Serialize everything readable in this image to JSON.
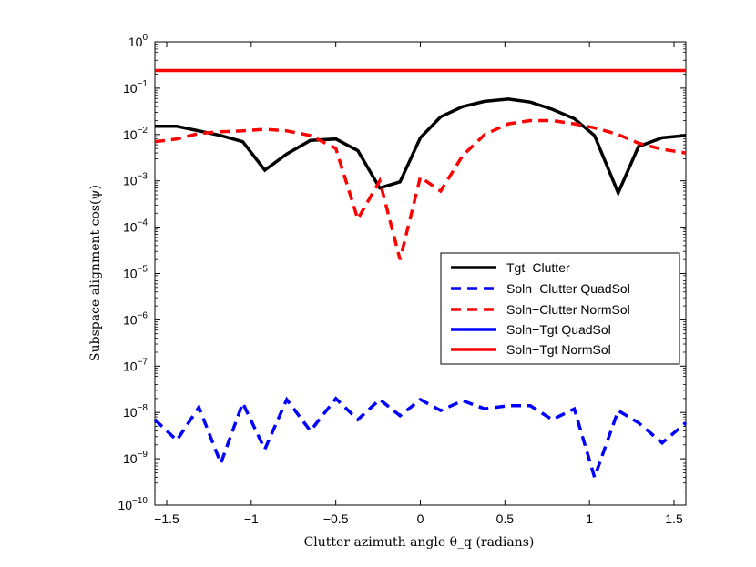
{
  "chart_data": {
    "type": "line",
    "xlabel": "Clutter azimuth angle θ_q (radians)",
    "ylabel": "Subspace alignment cos(ψ)",
    "xlim": [
      -1.57,
      1.57
    ],
    "ylim_log10": [
      -10,
      0
    ],
    "yscale": "log",
    "grid": false,
    "legend_position": "lower-right",
    "x_ticks": [
      -1.5,
      -1,
      -0.5,
      0,
      0.5,
      1,
      1.5
    ],
    "x_tick_labels": [
      "−1.5",
      "−1",
      "−0.5",
      "0",
      "0.5",
      "1",
      "1.5"
    ],
    "y_ticks_exp": [
      0,
      -1,
      -2,
      -3,
      -4,
      -5,
      -6,
      -7,
      -8,
      -9,
      -10
    ],
    "y_tick_labels": [
      {
        "base": "10",
        "exp": "0"
      },
      {
        "base": "10",
        "exp": "−1"
      },
      {
        "base": "10",
        "exp": "−2"
      },
      {
        "base": "10",
        "exp": "−3"
      },
      {
        "base": "10",
        "exp": "−4"
      },
      {
        "base": "10",
        "exp": "−5"
      },
      {
        "base": "10",
        "exp": "−6"
      },
      {
        "base": "10",
        "exp": "−7"
      },
      {
        "base": "10",
        "exp": "−8"
      },
      {
        "base": "10",
        "exp": "−9"
      },
      {
        "base": "10",
        "exp": "−10"
      }
    ],
    "series": [
      {
        "name": "Tgt−Clutter",
        "color": "#000000",
        "dash": "solid",
        "x": [
          -1.57,
          -1.44,
          -1.31,
          -1.18,
          -1.05,
          -0.92,
          -0.79,
          -0.65,
          -0.5,
          -0.37,
          -0.24,
          -0.12,
          0.0,
          0.12,
          0.25,
          0.38,
          0.52,
          0.65,
          0.78,
          0.91,
          1.03,
          1.17,
          1.29,
          1.43,
          1.57
        ],
        "y": [
          0.015,
          0.015,
          0.012,
          0.0095,
          0.007,
          0.0017,
          0.0038,
          0.0075,
          0.008,
          0.0045,
          0.0007,
          0.00095,
          0.0085,
          0.024,
          0.04,
          0.052,
          0.058,
          0.05,
          0.035,
          0.022,
          0.0095,
          0.00055,
          0.0055,
          0.0085,
          0.0095
        ]
      },
      {
        "name": "Soln−Clutter QuadSol",
        "color": "#0000ff",
        "dash": "dashed",
        "x": [
          -1.57,
          -1.44,
          -1.31,
          -1.18,
          -1.05,
          -0.92,
          -0.79,
          -0.65,
          -0.5,
          -0.37,
          -0.24,
          -0.12,
          0.0,
          0.12,
          0.25,
          0.38,
          0.52,
          0.65,
          0.78,
          0.91,
          1.03,
          1.17,
          1.29,
          1.43,
          1.57
        ],
        "y": [
          7e-09,
          2.5e-09,
          1.3e-08,
          8e-10,
          1.6e-08,
          1.6e-09,
          1.9e-08,
          4e-09,
          2e-08,
          7e-09,
          1.9e-08,
          8.5e-09,
          1.9e-08,
          1.1e-08,
          1.8e-08,
          1.2e-08,
          1.4e-08,
          1.4e-08,
          7e-09,
          1.2e-08,
          4e-10,
          1.1e-08,
          6e-09,
          2.2e-09,
          6e-09
        ]
      },
      {
        "name": "Soln−Clutter NormSol",
        "color": "#ff0000",
        "dash": "dashed",
        "x": [
          -1.57,
          -1.44,
          -1.31,
          -1.18,
          -1.05,
          -0.92,
          -0.79,
          -0.65,
          -0.5,
          -0.37,
          -0.24,
          -0.12,
          0.0,
          0.12,
          0.25,
          0.38,
          0.52,
          0.65,
          0.78,
          0.91,
          1.03,
          1.17,
          1.29,
          1.43,
          1.57
        ],
        "y": [
          0.007,
          0.008,
          0.0105,
          0.0115,
          0.012,
          0.013,
          0.012,
          0.0095,
          0.005,
          0.00015,
          0.001,
          2e-05,
          0.0012,
          0.0006,
          0.0035,
          0.01,
          0.017,
          0.02,
          0.02,
          0.017,
          0.014,
          0.01,
          0.0065,
          0.0048,
          0.004
        ]
      },
      {
        "name": "Soln−Tgt QuadSol",
        "color": "#0000ff",
        "dash": "solid",
        "x": [],
        "y": []
      },
      {
        "name": "Soln−Tgt NormSol",
        "color": "#ff0000",
        "dash": "solid",
        "x": [
          -1.57,
          1.57
        ],
        "y": [
          0.24,
          0.24
        ]
      }
    ]
  }
}
